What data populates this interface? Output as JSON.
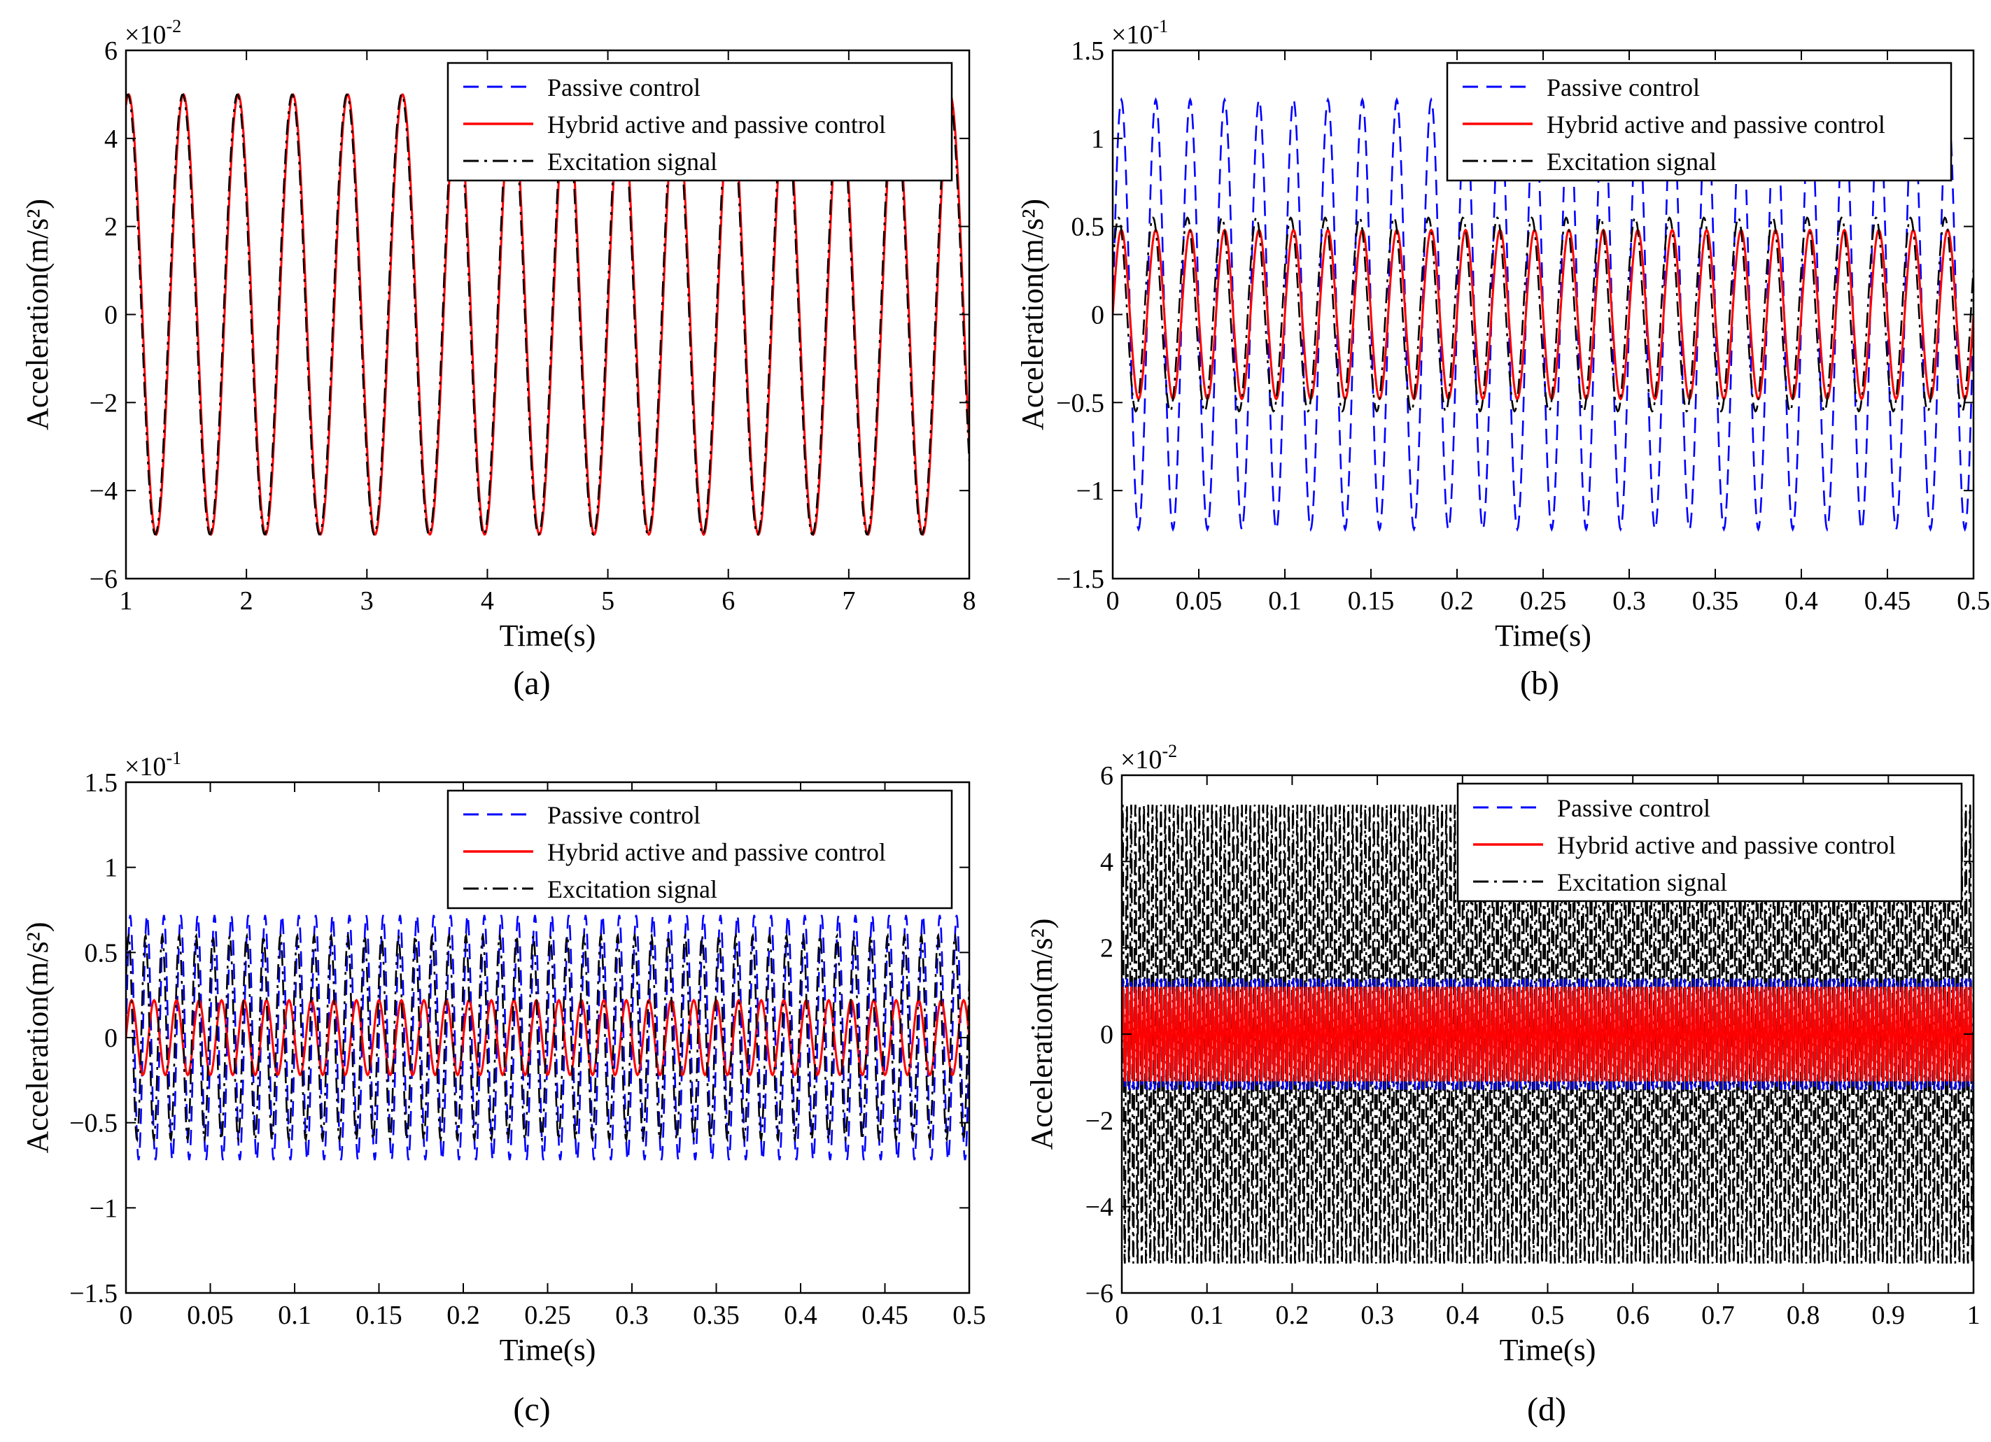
{
  "figure": {
    "colors": {
      "passive": "#0000ff",
      "hybrid": "#ff0000",
      "excitation": "#000000"
    },
    "legend_items": [
      "Passive control",
      "Hybrid active and passive control",
      "Excitation signal"
    ]
  },
  "chart_data": [
    {
      "type": "line",
      "panel_label": "(a)",
      "xlabel": "Time(s)",
      "ylabel": "Acceleration(m/s²)",
      "scale_base": "×10",
      "scale_exp": "-2",
      "xlim": [
        1,
        8
      ],
      "ylim": [
        -6,
        6
      ],
      "xticks": [
        1,
        2,
        3,
        4,
        5,
        6,
        7,
        8
      ],
      "xtick_labels": [
        "1",
        "2",
        "3",
        "4",
        "5",
        "6",
        "7",
        "8"
      ],
      "yticks": [
        -6,
        -4,
        -2,
        0,
        2,
        4,
        6
      ],
      "ytick_labels": [
        "−6",
        "−4",
        "−2",
        "0",
        "2",
        "4",
        "6"
      ],
      "legend_position": "top-right",
      "series": [
        {
          "name": "Passive control",
          "style": "dashed",
          "frequency_hz": 2.2,
          "amplitude": 5.0,
          "phase": 0.0
        },
        {
          "name": "Hybrid active and passive control",
          "style": "solid",
          "frequency_hz": 2.2,
          "amplitude": 5.0,
          "phase": 0.0
        },
        {
          "name": "Excitation signal",
          "style": "dashdot",
          "frequency_hz": 2.2,
          "amplitude": 5.0,
          "phase": 0.1
        }
      ]
    },
    {
      "type": "line",
      "panel_label": "(b)",
      "xlabel": "Time(s)",
      "ylabel": "Acceleration(m/s²)",
      "scale_base": "×10",
      "scale_exp": "-1",
      "xlim": [
        0,
        0.5
      ],
      "ylim": [
        -1.5,
        1.5
      ],
      "xticks": [
        0,
        0.05,
        0.1,
        0.15,
        0.2,
        0.25,
        0.3,
        0.35,
        0.4,
        0.45,
        0.5
      ],
      "xtick_labels": [
        "0",
        "0.05",
        "0.1",
        "0.15",
        "0.2",
        "0.25",
        "0.3",
        "0.35",
        "0.4",
        "0.45",
        "0.5"
      ],
      "yticks": [
        -1.5,
        -1,
        -0.5,
        0,
        0.5,
        1,
        1.5
      ],
      "ytick_labels": [
        "−1.5",
        "−1",
        "−0.5",
        "0",
        "0.5",
        "1",
        "1.5"
      ],
      "legend_position": "top-right",
      "series": [
        {
          "name": "Passive control",
          "style": "dashed",
          "frequency_hz": 50,
          "amplitude": 1.22,
          "phase": 0.0
        },
        {
          "name": "Hybrid active and passive control",
          "style": "solid",
          "frequency_hz": 50,
          "amplitude": 0.48,
          "phase": 0.0
        },
        {
          "name": "Excitation signal",
          "style": "dashdot",
          "frequency_hz": 50,
          "amplitude": 0.55,
          "phase": 0.5
        }
      ]
    },
    {
      "type": "line",
      "panel_label": "(c)",
      "xlabel": "Time(s)",
      "ylabel": "Acceleration(m/s²)",
      "scale_base": "×10",
      "scale_exp": "-1",
      "xlim": [
        0,
        0.5
      ],
      "ylim": [
        -1.5,
        1.5
      ],
      "xticks": [
        0,
        0.05,
        0.1,
        0.15,
        0.2,
        0.25,
        0.3,
        0.35,
        0.4,
        0.45,
        0.5
      ],
      "xtick_labels": [
        "0",
        "0.05",
        "0.1",
        "0.15",
        "0.2",
        "0.25",
        "0.3",
        "0.35",
        "0.4",
        "0.45",
        "0.5"
      ],
      "yticks": [
        -1.5,
        -1,
        -0.5,
        0,
        0.5,
        1,
        1.5
      ],
      "ytick_labels": [
        "−1.5",
        "−1",
        "−0.5",
        "0",
        "0.5",
        "1",
        "1.5"
      ],
      "legend_position": "top-right",
      "series": [
        {
          "name": "Passive control",
          "style": "dashed",
          "frequency_hz": 100,
          "amplitude": 0.72,
          "phase": 0.0
        },
        {
          "name": "Hybrid active and passive control",
          "style": "solid",
          "frequency_hz": 75,
          "amplitude": 0.22,
          "phase": 0.0
        },
        {
          "name": "Excitation signal",
          "style": "dashdot",
          "frequency_hz": 100,
          "amplitude": 0.6,
          "phase": 0.6
        }
      ]
    },
    {
      "type": "line",
      "panel_label": "(d)",
      "xlabel": "Time(s)",
      "ylabel": "Acceleration(m/s²)",
      "scale_base": "×10",
      "scale_exp": "-2",
      "xlim": [
        0,
        1
      ],
      "ylim": [
        -6,
        6
      ],
      "xticks": [
        0,
        0.1,
        0.2,
        0.3,
        0.4,
        0.5,
        0.6,
        0.7,
        0.8,
        0.9,
        1
      ],
      "xtick_labels": [
        "0",
        "0.1",
        "0.2",
        "0.3",
        "0.4",
        "0.5",
        "0.6",
        "0.7",
        "0.8",
        "0.9",
        "1"
      ],
      "yticks": [
        -6,
        -4,
        -2,
        0,
        2,
        4,
        6
      ],
      "ytick_labels": [
        "−6",
        "−4",
        "−2",
        "0",
        "2",
        "4",
        "6"
      ],
      "legend_position": "top-right",
      "series": [
        {
          "name": "Excitation signal",
          "style": "dashdot",
          "frequency_hz": 200,
          "amplitude": 5.4,
          "phase": 0.4
        },
        {
          "name": "Passive control",
          "style": "dashed",
          "frequency_hz": 200,
          "amplitude": 1.3,
          "phase": 0.0
        },
        {
          "name": "Hybrid active and passive control",
          "style": "solid",
          "frequency_hz": 200,
          "amplitude": 1.1,
          "phase": 0.0
        }
      ]
    }
  ]
}
